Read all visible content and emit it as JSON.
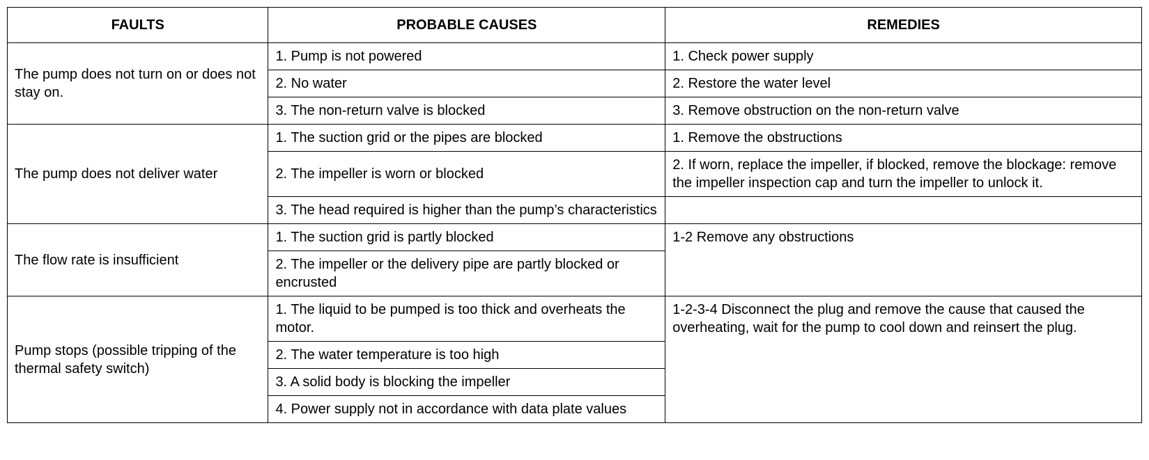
{
  "table": {
    "type": "table",
    "columns": [
      "FAULTS",
      "PROBABLE CAUSES",
      "REMEDIES"
    ],
    "column_widths_pct": [
      23,
      35,
      42
    ],
    "border_color": "#000000",
    "background_color": "#ffffff",
    "text_color": "#000000",
    "header_fontsize": 20,
    "body_fontsize": 20,
    "header_fontweight": "bold",
    "faults": {
      "row1": {
        "label": "The pump does not turn on or does not stay on.",
        "causes": [
          "1. Pump is not powered",
          "2. No water",
          "3. The non-return valve is blocked"
        ],
        "remedies": [
          "1. Check power supply",
          "2. Restore the water level",
          "3. Remove obstruction on the non-return valve"
        ]
      },
      "row2": {
        "label": "The pump does not deliver water",
        "causes": [
          "1. The suction grid or the pipes are blocked",
          "2. The impeller is worn or blocked",
          "3. The head required is higher than the pump’s characteristics"
        ],
        "remedies": [
          "1. Remove the obstructions",
          "2. If worn, replace the impeller, if blocked, remove the blockage: remove the impeller inspection cap and turn the impeller to unlock it.",
          ""
        ]
      },
      "row3": {
        "label": "The flow rate is insufficient",
        "causes": [
          "1. The suction grid is partly blocked",
          "2. The impeller or the delivery pipe are partly blocked or encrusted"
        ],
        "remedy": "1-2 Remove any obstructions"
      },
      "row4": {
        "label": "Pump stops (possible tripping of the thermal safety switch)",
        "causes": [
          "1. The liquid to be pumped is too thick and overheats the motor.",
          "2. The water temperature is too high",
          "3. A solid body is blocking the impeller",
          "4. Power supply not in accordance with data plate values"
        ],
        "remedy": "1-2-3-4 Disconnect the plug and remove the cause that caused the overheating, wait for the pump to cool down and reinsert the plug."
      }
    }
  }
}
